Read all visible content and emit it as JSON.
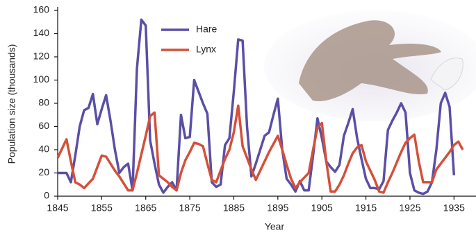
{
  "chart_data": {
    "type": "line",
    "xlabel": "Year",
    "ylabel": "Population size (thousands)",
    "x": [
      1845,
      1846,
      1847,
      1848,
      1849,
      1850,
      1851,
      1852,
      1853,
      1854,
      1855,
      1856,
      1857,
      1858,
      1859,
      1860,
      1861,
      1862,
      1863,
      1864,
      1865,
      1866,
      1867,
      1868,
      1869,
      1870,
      1871,
      1872,
      1873,
      1874,
      1875,
      1876,
      1877,
      1878,
      1879,
      1880,
      1881,
      1882,
      1883,
      1884,
      1885,
      1886,
      1887,
      1888,
      1889,
      1890,
      1891,
      1892,
      1893,
      1894,
      1895,
      1896,
      1897,
      1898,
      1899,
      1900,
      1901,
      1902,
      1903,
      1904,
      1905,
      1906,
      1907,
      1908,
      1909,
      1910,
      1911,
      1912,
      1913,
      1914,
      1915,
      1916,
      1917,
      1918,
      1919,
      1920,
      1921,
      1922,
      1923,
      1924,
      1925,
      1926,
      1927,
      1928,
      1929,
      1930,
      1931,
      1932,
      1933,
      1934,
      1935,
      1936,
      1937
    ],
    "series": [
      {
        "name": "Hare",
        "color": "#5a4fa5",
        "values": [
          20,
          20,
          20,
          12,
          35,
          60,
          74,
          76,
          88,
          62,
          75,
          87,
          65,
          40,
          20,
          25,
          28,
          5,
          110,
          152,
          147,
          48,
          28,
          10,
          3,
          8,
          12,
          5,
          70,
          50,
          51,
          100,
          90,
          80,
          71,
          12,
          8,
          10,
          44,
          50,
          90,
          135,
          134,
          60,
          17,
          28,
          40,
          52,
          55,
          70,
          84,
          40,
          15,
          10,
          4,
          13,
          5,
          5,
          35,
          67,
          50,
          30,
          25,
          21,
          27,
          52,
          63,
          75,
          50,
          32,
          15,
          7,
          7,
          6,
          13,
          57,
          65,
          72,
          80,
          72,
          20,
          5,
          3,
          2,
          4,
          12,
          40,
          80,
          89,
          77,
          18,
          null,
          null
        ]
      },
      {
        "name": "Lynx",
        "color": "#d4503a",
        "values": [
          33,
          41,
          49,
          30,
          12,
          10,
          7,
          11,
          15,
          25,
          35,
          34,
          28,
          22,
          17,
          11,
          5,
          5,
          20,
          36,
          52,
          69,
          72,
          18,
          15,
          12,
          8,
          5,
          20,
          31,
          38,
          46,
          45,
          43,
          28,
          14,
          12,
          22,
          32,
          40,
          55,
          78,
          43,
          33,
          23,
          14,
          22,
          30,
          38,
          45,
          52,
          40,
          27,
          15,
          7,
          12,
          16,
          20,
          40,
          59,
          63,
          30,
          4,
          4,
          10,
          18,
          28,
          37,
          42,
          44,
          30,
          22,
          14,
          4,
          3,
          12,
          20,
          29,
          38,
          46,
          50,
          53,
          30,
          12,
          12,
          12,
          23,
          28,
          33,
          38,
          44,
          47,
          40
        ]
      }
    ],
    "xlim": [
      1845,
      1940
    ],
    "xticks": [
      1845,
      1855,
      1865,
      1875,
      1885,
      1895,
      1905,
      1915,
      1925,
      1935
    ],
    "ylim": [
      0,
      160
    ],
    "yticks": [
      0,
      20,
      40,
      60,
      80,
      100,
      120,
      140,
      160
    ],
    "grid": false
  }
}
